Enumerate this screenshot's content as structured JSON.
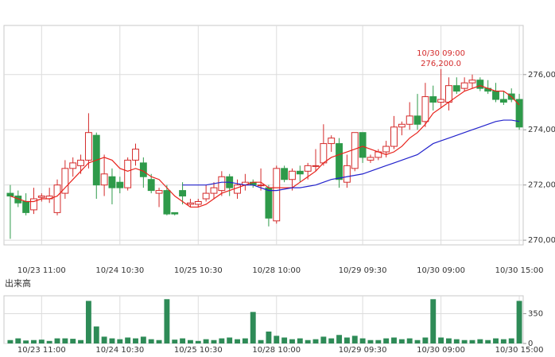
{
  "chart_data": [
    {
      "type": "candlestick",
      "categories": [
        null,
        null,
        null,
        null,
        "10/23 11:00",
        null,
        null,
        null,
        null,
        null,
        null,
        null,
        null,
        null,
        "10/24 10:30",
        null,
        null,
        null,
        null,
        null,
        null,
        null,
        null,
        null,
        "10/25 10:30",
        null,
        null,
        null,
        null,
        null,
        null,
        null,
        null,
        null,
        "10/28 10:00",
        null,
        null,
        null,
        null,
        null,
        null,
        null,
        null,
        null,
        null,
        "10/29 09:30",
        null,
        null,
        null,
        null,
        null,
        null,
        null,
        null,
        null,
        "10/30 09:00",
        null,
        null,
        null,
        null,
        null,
        null,
        null,
        null,
        null,
        "10/30 15:00"
      ],
      "open": [
        271700,
        271600,
        271400,
        271100,
        271550,
        271500,
        271000,
        271700,
        272600,
        272700,
        272900,
        273800,
        272000,
        272300,
        272100,
        271900,
        272900,
        272800,
        272200,
        271700,
        271800,
        271000,
        271800,
        271300,
        271300,
        271500,
        271700,
        271800,
        272300,
        271700,
        272000,
        272100,
        272000,
        271900,
        270700,
        272600,
        272200,
        272500,
        272500,
        272700,
        272800,
        273500,
        273500,
        272100,
        272600,
        273900,
        272900,
        273000,
        273200,
        273400,
        274100,
        274200,
        274500,
        274300,
        275200,
        275000,
        275000,
        275600,
        275500,
        275700,
        275800,
        275500,
        275400,
        275100,
        275300,
        275100
      ],
      "high": [
        272000,
        271800,
        271700,
        271900,
        271700,
        271900,
        272200,
        272900,
        273000,
        273100,
        274600,
        273900,
        273100,
        272600,
        272300,
        273000,
        273500,
        273000,
        272400,
        271900,
        272000,
        271000,
        272100,
        271500,
        271500,
        272000,
        272100,
        272500,
        272400,
        272200,
        272400,
        272200,
        272600,
        272000,
        272700,
        272700,
        272600,
        272700,
        272800,
        273300,
        274200,
        273800,
        273700,
        273100,
        273900,
        273900,
        273100,
        273300,
        273600,
        274500,
        274300,
        275000,
        275300,
        275700,
        275600,
        276200,
        275900,
        275900,
        275900,
        276000,
        275900,
        275800,
        275700,
        275400,
        275500,
        275300
      ],
      "low": [
        270050,
        271200,
        270900,
        270950,
        271400,
        271350,
        270900,
        271500,
        272300,
        272400,
        272600,
        271500,
        271600,
        271300,
        271700,
        271800,
        272700,
        271900,
        271700,
        271200,
        270900,
        270900,
        271300,
        271200,
        271200,
        271400,
        271500,
        271600,
        271600,
        271500,
        271800,
        271900,
        271800,
        270500,
        270600,
        272100,
        271800,
        272100,
        272200,
        272500,
        272700,
        273200,
        271900,
        271900,
        272500,
        272800,
        272800,
        272900,
        273000,
        273300,
        273800,
        274000,
        274000,
        274100,
        274700,
        274800,
        274700,
        275300,
        275400,
        275500,
        275400,
        275300,
        275000,
        274900,
        275000,
        274000
      ],
      "close": [
        271600,
        271350,
        271000,
        271500,
        271600,
        271600,
        272000,
        272600,
        272800,
        272900,
        273900,
        272000,
        272400,
        271900,
        271900,
        272900,
        273300,
        272300,
        271800,
        271800,
        270950,
        270950,
        271600,
        271350,
        271400,
        271700,
        271900,
        272300,
        271900,
        272000,
        272100,
        272000,
        272000,
        270800,
        272600,
        272200,
        272500,
        272400,
        272700,
        272700,
        273500,
        273700,
        272200,
        272700,
        273900,
        273000,
        273000,
        273200,
        273400,
        274100,
        274200,
        274500,
        274200,
        275200,
        275000,
        275100,
        275600,
        275400,
        275700,
        275800,
        275500,
        275400,
        275100,
        275000,
        275100,
        274100
      ],
      "up_color": "#d42a2a",
      "down_color": "#2e9a4a",
      "series": [
        {
          "color": "#e8221b",
          "values": [
            271600,
            271500,
            271400,
            271400,
            271500,
            271500,
            271600,
            271900,
            272200,
            272500,
            272800,
            272900,
            273000,
            272900,
            272600,
            272500,
            272600,
            272500,
            272300,
            272200,
            271900,
            271600,
            271400,
            271200,
            271200,
            271300,
            271500,
            271700,
            271800,
            271900,
            272000,
            272100,
            272100,
            271900,
            271900,
            271900,
            271900,
            272100,
            272300,
            272500,
            272800,
            273000,
            273100,
            273200,
            273300,
            273400,
            273300,
            273200,
            273100,
            273200,
            273400,
            273700,
            273900,
            274200,
            274600,
            274800,
            275000,
            275200,
            275400,
            275500,
            275600,
            275500,
            275400,
            275400,
            275200,
            274900
          ]
        },
        {
          "color": "#2222cc",
          "values": [
            null,
            null,
            null,
            null,
            null,
            null,
            null,
            null,
            null,
            null,
            null,
            null,
            null,
            null,
            null,
            null,
            null,
            null,
            null,
            null,
            null,
            null,
            272000,
            272000,
            272000,
            272000,
            272050,
            272100,
            272100,
            272050,
            272000,
            272000,
            271900,
            271800,
            271800,
            271850,
            271900,
            271900,
            271950,
            272000,
            272100,
            272200,
            272250,
            272300,
            272350,
            272400,
            272500,
            272600,
            272700,
            272800,
            272900,
            273000,
            273100,
            273300,
            273500,
            273600,
            273700,
            273800,
            273900,
            274000,
            274100,
            274200,
            274300,
            274350,
            274350,
            274300
          ]
        }
      ],
      "annotation": [
        "10/30 09:00",
        "276,200.0"
      ],
      "annotation_color": "#d42a2a",
      "ylim": [
        269830,
        277780
      ],
      "yticks": [
        {
          "value": 270000,
          "label": "270,000"
        },
        {
          "value": 272000,
          "label": "272,000"
        },
        {
          "value": 274000,
          "label": "274,000"
        },
        {
          "value": 276000,
          "label": "276,000"
        }
      ],
      "grid": true
    },
    {
      "type": "bar",
      "title": "出来高",
      "color": "#2e8b57",
      "values": [
        40,
        60,
        35,
        40,
        45,
        30,
        60,
        60,
        55,
        40,
        500,
        200,
        80,
        60,
        50,
        70,
        60,
        80,
        50,
        40,
        520,
        45,
        60,
        40,
        30,
        50,
        40,
        60,
        70,
        50,
        60,
        370,
        40,
        140,
        90,
        70,
        50,
        60,
        40,
        50,
        80,
        60,
        100,
        70,
        90,
        60,
        40,
        40,
        60,
        70,
        50,
        60,
        40,
        70,
        520,
        70,
        60,
        50,
        40,
        40,
        50,
        40,
        60,
        50,
        60,
        500
      ],
      "ylim": [
        0,
        560
      ],
      "yticks": [
        0,
        350
      ],
      "grid": true
    }
  ]
}
